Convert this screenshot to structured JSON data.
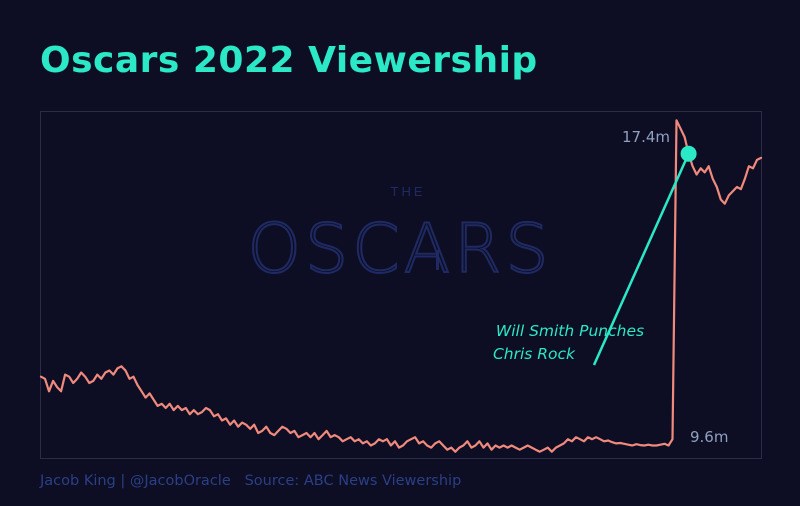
{
  "header": {
    "title": "Oscars 2022 Viewership"
  },
  "watermark": {
    "small": "THE",
    "large": "OSCARS"
  },
  "footer": {
    "author": "Jacob King | @JacobOracle",
    "source": "Source: ABC News Viewership"
  },
  "colors": {
    "background": "#0d0e24",
    "title": "#2be8c6",
    "line": "#f08a7c",
    "annotation": "#2be8c6",
    "value_labels": "#8fa0c0",
    "watermark": "#1f2a63",
    "footer": "#2b3f86"
  },
  "chart_data": {
    "type": "line",
    "title": "Oscars 2022 Viewership",
    "xlabel": "",
    "ylabel": "",
    "grid": false,
    "legend": "none",
    "series": [
      {
        "values": [
          11.25,
          11.2,
          10.9,
          11.15,
          11.0,
          10.9,
          11.3,
          11.25,
          11.1,
          11.2,
          11.35,
          11.25,
          11.1,
          11.15,
          11.3,
          11.2,
          11.35,
          11.4,
          11.3,
          11.45,
          11.5,
          11.4,
          11.2,
          11.25,
          11.05,
          10.9,
          10.75,
          10.85,
          10.7,
          10.55,
          10.6,
          10.5,
          10.6,
          10.45,
          10.55,
          10.45,
          10.5,
          10.35,
          10.45,
          10.35,
          10.4,
          10.5,
          10.45,
          10.3,
          10.35,
          10.2,
          10.25,
          10.1,
          10.2,
          10.05,
          10.15,
          10.1,
          10.0,
          10.1,
          9.9,
          9.95,
          10.05,
          9.9,
          9.85,
          9.95,
          10.05,
          10.0,
          9.9,
          9.95,
          9.8,
          9.85,
          9.9,
          9.8,
          9.9,
          9.75,
          9.85,
          9.95,
          9.8,
          9.85,
          9.8,
          9.7,
          9.75,
          9.8,
          9.7,
          9.75,
          9.65,
          9.7,
          9.6,
          9.65,
          9.75,
          9.7,
          9.75,
          9.6,
          9.7,
          9.55,
          9.6,
          9.7,
          9.75,
          9.8,
          9.65,
          9.7,
          9.6,
          9.55,
          9.65,
          9.7,
          9.6,
          9.5,
          9.55,
          9.45,
          9.55,
          9.6,
          9.7,
          9.55,
          9.6,
          9.7,
          9.55,
          9.65,
          9.5,
          9.6,
          9.55,
          9.6,
          9.55,
          9.6,
          9.55,
          9.5,
          9.55,
          9.6,
          9.55,
          9.5,
          9.45,
          9.5,
          9.55,
          9.45,
          9.55,
          9.6,
          9.65,
          9.75,
          9.7,
          9.8,
          9.75,
          9.7,
          9.8,
          9.75,
          9.8,
          9.75,
          9.7,
          9.72,
          9.68,
          9.65,
          9.66,
          9.64,
          9.62,
          9.6,
          9.63,
          9.61,
          9.6,
          9.62,
          9.6,
          9.6,
          9.62,
          9.64,
          9.6,
          9.75,
          17.4,
          17.2,
          17.0,
          16.6,
          16.3,
          16.1,
          16.25,
          16.15,
          16.3,
          16.0,
          15.8,
          15.5,
          15.4,
          15.6,
          15.7,
          15.8,
          15.75,
          16.0,
          16.3,
          16.25,
          16.45,
          16.5
        ]
      }
    ],
    "ylim": [
      9.3,
      17.6
    ],
    "annotations": [
      {
        "label_line1": "Will Smith Punches",
        "label_line2": "Chris Rock",
        "at_index": 161
      },
      {
        "label": "17.4m",
        "at_index": 162
      },
      {
        "label": "9.6m",
        "at_index": 161
      }
    ]
  }
}
